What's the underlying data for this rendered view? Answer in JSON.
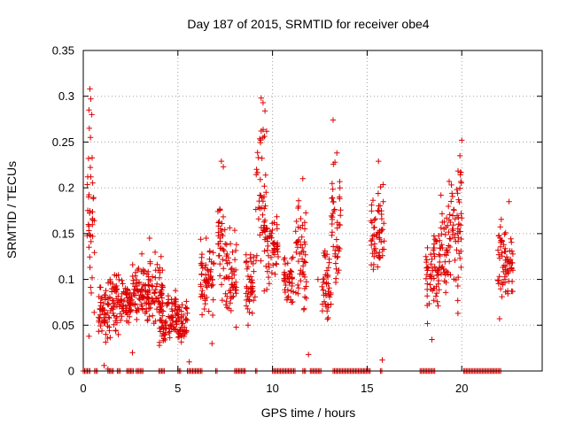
{
  "chart_data": {
    "type": "scatter",
    "title": "Day 187 of 2015, SRMTID for receiver obe4",
    "xlabel": "GPS time / hours",
    "ylabel": "SRMTID / TECUs",
    "xlim": [
      0,
      24.25
    ],
    "ylim": [
      0,
      0.35
    ],
    "x_ticks": [
      0,
      5,
      10,
      15,
      20
    ],
    "x_tick_labels": [
      "0",
      "5",
      "10",
      "15",
      "20"
    ],
    "y_ticks": [
      0,
      0.05,
      0.1,
      0.15,
      0.2,
      0.25,
      0.3,
      0.35
    ],
    "y_tick_labels": [
      "0",
      "0.05",
      "0.1",
      "0.15",
      "0.2",
      "0.25",
      "0.3",
      "0.35"
    ],
    "grid": true,
    "marker": "+",
    "color": "#dd0000",
    "series": [
      {
        "name": "SRMTID",
        "clusters": [
          {
            "x": [
              0.2,
              0.6
            ],
            "y": [
              0.05,
              0.31
            ]
          },
          {
            "x": [
              0.8,
              1.5
            ],
            "y": [
              0.01,
              0.13
            ]
          },
          {
            "x": [
              1.5,
              2.0
            ],
            "y": [
              0.03,
              0.12
            ]
          },
          {
            "x": [
              2.0,
              2.6
            ],
            "y": [
              0.04,
              0.11
            ]
          },
          {
            "x": [
              2.6,
              3.5
            ],
            "y": [
              0.04,
              0.13
            ]
          },
          {
            "x": [
              3.4,
              4.2
            ],
            "y": [
              0.04,
              0.14
            ]
          },
          {
            "x": [
              4.0,
              5.5
            ],
            "y": [
              0.02,
              0.09
            ]
          },
          {
            "x": [
              6.2,
              6.9
            ],
            "y": [
              0.05,
              0.16
            ]
          },
          {
            "x": [
              7.1,
              7.5
            ],
            "y": [
              0.06,
              0.23
            ]
          },
          {
            "x": [
              7.5,
              8.1
            ],
            "y": [
              0.04,
              0.17
            ]
          },
          {
            "x": [
              8.6,
              9.1
            ],
            "y": [
              0.04,
              0.15
            ]
          },
          {
            "x": [
              9.1,
              9.7
            ],
            "y": [
              0.05,
              0.3
            ]
          },
          {
            "x": [
              9.7,
              10.3
            ],
            "y": [
              0.08,
              0.19
            ]
          },
          {
            "x": [
              10.6,
              11.1
            ],
            "y": [
              0.05,
              0.14
            ]
          },
          {
            "x": [
              11.2,
              11.8
            ],
            "y": [
              0.05,
              0.21
            ]
          },
          {
            "x": [
              12.6,
              13.1
            ],
            "y": [
              0.04,
              0.15
            ]
          },
          {
            "x": [
              13.1,
              13.6
            ],
            "y": [
              0.06,
              0.27
            ]
          },
          {
            "x": [
              15.2,
              15.9
            ],
            "y": [
              0.07,
              0.23
            ]
          },
          {
            "x": [
              18.1,
              18.6
            ],
            "y": [
              0.02,
              0.18
            ]
          },
          {
            "x": [
              18.6,
              19.2
            ],
            "y": [
              0.05,
              0.19
            ]
          },
          {
            "x": [
              19.2,
              20.0
            ],
            "y": [
              0.04,
              0.25
            ]
          },
          {
            "x": [
              21.9,
              22.7
            ],
            "y": [
              0.06,
              0.18
            ]
          }
        ],
        "points": [
          [
            0.35,
            0.308
          ],
          [
            0.4,
            0.297
          ],
          [
            0.3,
            0.285
          ],
          [
            0.45,
            0.28
          ],
          [
            0.32,
            0.265
          ],
          [
            0.38,
            0.255
          ],
          [
            0.4,
            0.212
          ],
          [
            0.3,
            0.038
          ],
          [
            1.1,
            0.006
          ],
          [
            1.3,
            0.002
          ],
          [
            5.6,
            0.01
          ],
          [
            2.6,
            0.02
          ],
          [
            11.9,
            0.018
          ],
          [
            15.8,
            0.012
          ],
          [
            22.0,
            0.057
          ],
          [
            13.2,
            0.274
          ],
          [
            18.9,
            0.192
          ],
          [
            20.0,
            0.252
          ],
          [
            19.9,
            0.235
          ],
          [
            15.6,
            0.229
          ],
          [
            7.3,
            0.229
          ],
          [
            7.4,
            0.223
          ],
          [
            9.4,
            0.298
          ],
          [
            9.5,
            0.293
          ],
          [
            9.6,
            0.284
          ],
          [
            9.4,
            0.262
          ],
          [
            9.5,
            0.255
          ],
          [
            6.5,
            0.145
          ],
          [
            3.5,
            0.145
          ],
          [
            19.5,
            0.155
          ],
          [
            22.5,
            0.185
          ],
          [
            13.4,
            0.238
          ],
          [
            13.3,
            0.228
          ],
          [
            11.6,
            0.21
          ],
          [
            12.4,
            0.1
          ],
          [
            11.7,
            0.09
          ],
          [
            6.8,
            0.03
          ]
        ],
        "zero_segments": [
          [
            0.0,
            0.4
          ],
          [
            0.6,
            0.8
          ],
          [
            1.3,
            1.6
          ],
          [
            1.8,
            2.0
          ],
          [
            2.3,
            2.5
          ],
          [
            2.5,
            2.7
          ],
          [
            2.8,
            3.2
          ],
          [
            4.0,
            4.3
          ],
          [
            5.0,
            5.2
          ],
          [
            5.5,
            6.3
          ],
          [
            7.0,
            7.1
          ],
          [
            8.0,
            8.6
          ],
          [
            9.1,
            9.2
          ],
          [
            10.0,
            11.2
          ],
          [
            11.6,
            11.8
          ],
          [
            12.0,
            12.6
          ],
          [
            13.2,
            15.2
          ],
          [
            15.7,
            15.8
          ],
          [
            17.8,
            18.6
          ],
          [
            20.1,
            22.1
          ]
        ]
      }
    ]
  }
}
